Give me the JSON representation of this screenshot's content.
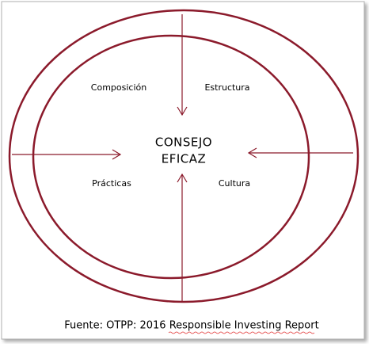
{
  "quadrants": {
    "top_left": "Composición",
    "top_right": "Estructura",
    "bottom_left": "Prácticas",
    "bottom_right": "Cultura"
  },
  "center": {
    "line1": "CONSEJO",
    "line2": "EFICAZ"
  },
  "source": "Fuente: OTPP: 2016 Responsible Investing Report"
}
